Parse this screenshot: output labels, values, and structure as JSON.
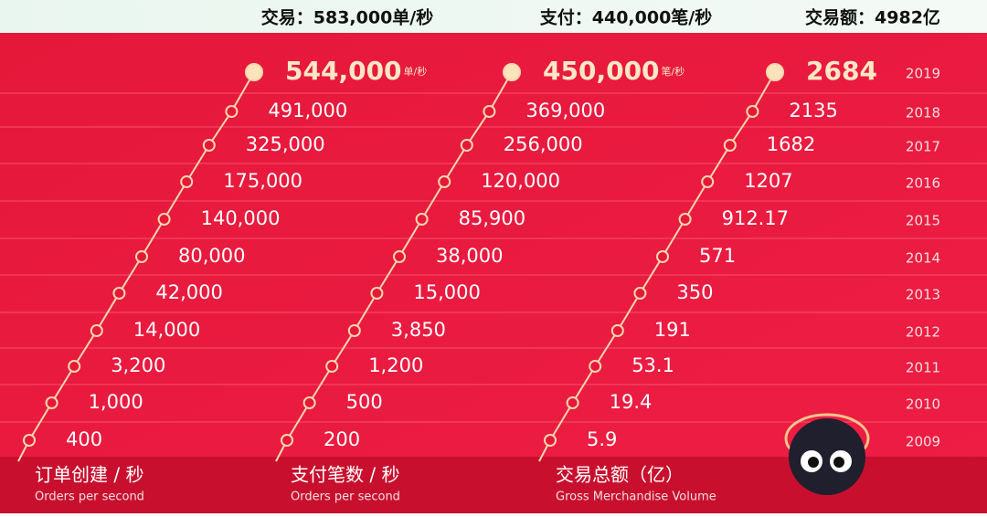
{
  "header": {
    "items": [
      "交易：583,000单/秒",
      "支付：440,000笔/秒",
      "交易额：4982亿"
    ]
  },
  "years": [
    "2019",
    "2018",
    "2017",
    "2016",
    "2015",
    "2014",
    "2013",
    "2012",
    "2011",
    "2010",
    "2009"
  ],
  "columns": [
    {
      "title": "订单创建 / 秒",
      "subtitle": "Orders per second",
      "unit": "单/秒",
      "values": [
        "544,000",
        "491,000",
        "325,000",
        "175,000",
        "140,000",
        "80,000",
        "42,000",
        "14,000",
        "3,200",
        "1,000",
        "400"
      ]
    },
    {
      "title": "支付笔数 / 秒",
      "subtitle": "Orders per second",
      "unit": "笔/秒",
      "values": [
        "450,000",
        "369,000",
        "256,000",
        "120,000",
        "85,900",
        "38,000",
        "15,000",
        "3,850",
        "1,200",
        "500",
        "200"
      ]
    },
    {
      "title": "交易总额（亿）",
      "subtitle": "Gross Merchandise Volume",
      "values": [
        "2684",
        "2135",
        "1682",
        "1207",
        "912.17",
        "571",
        "350",
        "191",
        "53.1",
        "19.4",
        "5.9"
      ]
    }
  ]
}
